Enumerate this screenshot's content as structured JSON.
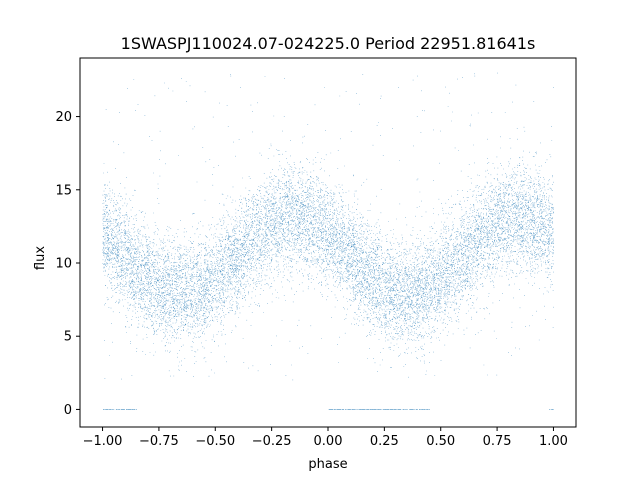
{
  "chart_data": {
    "type": "scatter",
    "title": "1SWASPJ110024.07-024225.0 Period 22951.81641s",
    "xlabel": "phase",
    "ylabel": "flux",
    "xlim": [
      -1.1,
      1.1
    ],
    "ylim": [
      -1.2,
      24.0
    ],
    "xticks": [
      -1.0,
      -0.75,
      -0.5,
      -0.25,
      0.0,
      0.25,
      0.5,
      0.75,
      1.0
    ],
    "xtick_labels": [
      "−1.00",
      "−0.75",
      "−0.50",
      "−0.25",
      "0.00",
      "0.25",
      "0.50",
      "0.75",
      "1.00"
    ],
    "yticks": [
      0,
      5,
      10,
      15,
      20
    ],
    "ytick_labels": [
      "0",
      "5",
      "10",
      "15",
      "20"
    ],
    "grid": false,
    "legend": "none",
    "marker_color": "#1f77b4",
    "marker_size": 0.6,
    "series_model": {
      "description_of_trend": "sinusoidal light curve",
      "period_in_phase": 1.0,
      "mean_flux": 10.5,
      "amplitude": 2.6,
      "peak_phases": [
        -0.15,
        0.85
      ],
      "trough_phases": [
        -0.6,
        0.4
      ],
      "scatter_sigma": 1.8,
      "zero_flux_points_phase_ranges": [
        [
          -1.0,
          -0.85
        ],
        [
          0.0,
          0.45
        ],
        [
          0.98,
          1.0
        ]
      ],
      "outlier_ceiling": 23.0,
      "approx_point_count": 14000
    }
  }
}
